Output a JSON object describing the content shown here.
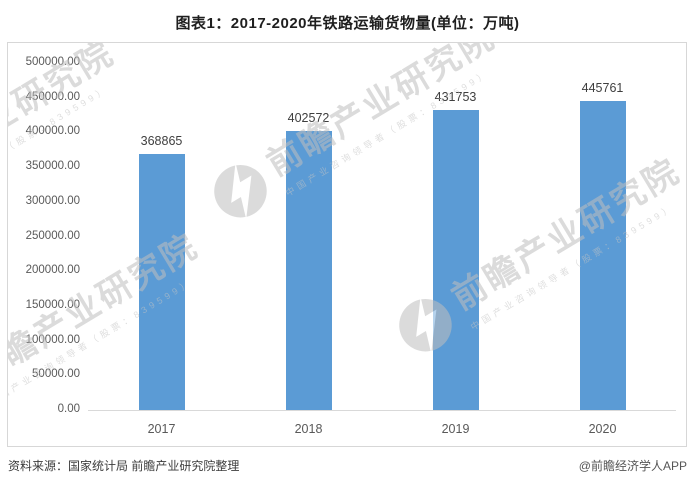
{
  "title": "图表1：2017-2020年铁路运输货物量(单位：万吨)",
  "watermark": {
    "logo": "qianzhan-logo",
    "text": "前瞻产业研究院",
    "subtext": "中国产业咨询领导者（股票：839599）"
  },
  "footer": {
    "source": "资料来源：国家统计局 前瞻产业研究院整理",
    "credit": "@前瞻经济学人APP"
  },
  "colors": {
    "bar": "#5B9BD5",
    "axis": "#D9D9D9",
    "tick_text": "#595959",
    "value_label_text": "#3F3F3F",
    "panel_border": "#D7D7D7"
  },
  "chart_data": {
    "type": "bar",
    "title": "图表1：2017-2020年铁路运输货物量(单位：万吨)",
    "categories": [
      "2017",
      "2018",
      "2019",
      "2020"
    ],
    "values": [
      368865,
      402572,
      431753,
      445761
    ],
    "value_labels": [
      "368865",
      "402572",
      "431753",
      "445761"
    ],
    "xlabel": "",
    "ylabel": "",
    "ylim": [
      0,
      500000
    ],
    "ytick_step": 50000,
    "yticks": [
      "500000.00",
      "450000.00",
      "400000.00",
      "350000.00",
      "300000.00",
      "250000.00",
      "200000.00",
      "150000.00",
      "100000.00",
      "50000.00",
      "0.00"
    ],
    "grid": false,
    "legend": false,
    "bar_color": "#5B9BD5"
  }
}
